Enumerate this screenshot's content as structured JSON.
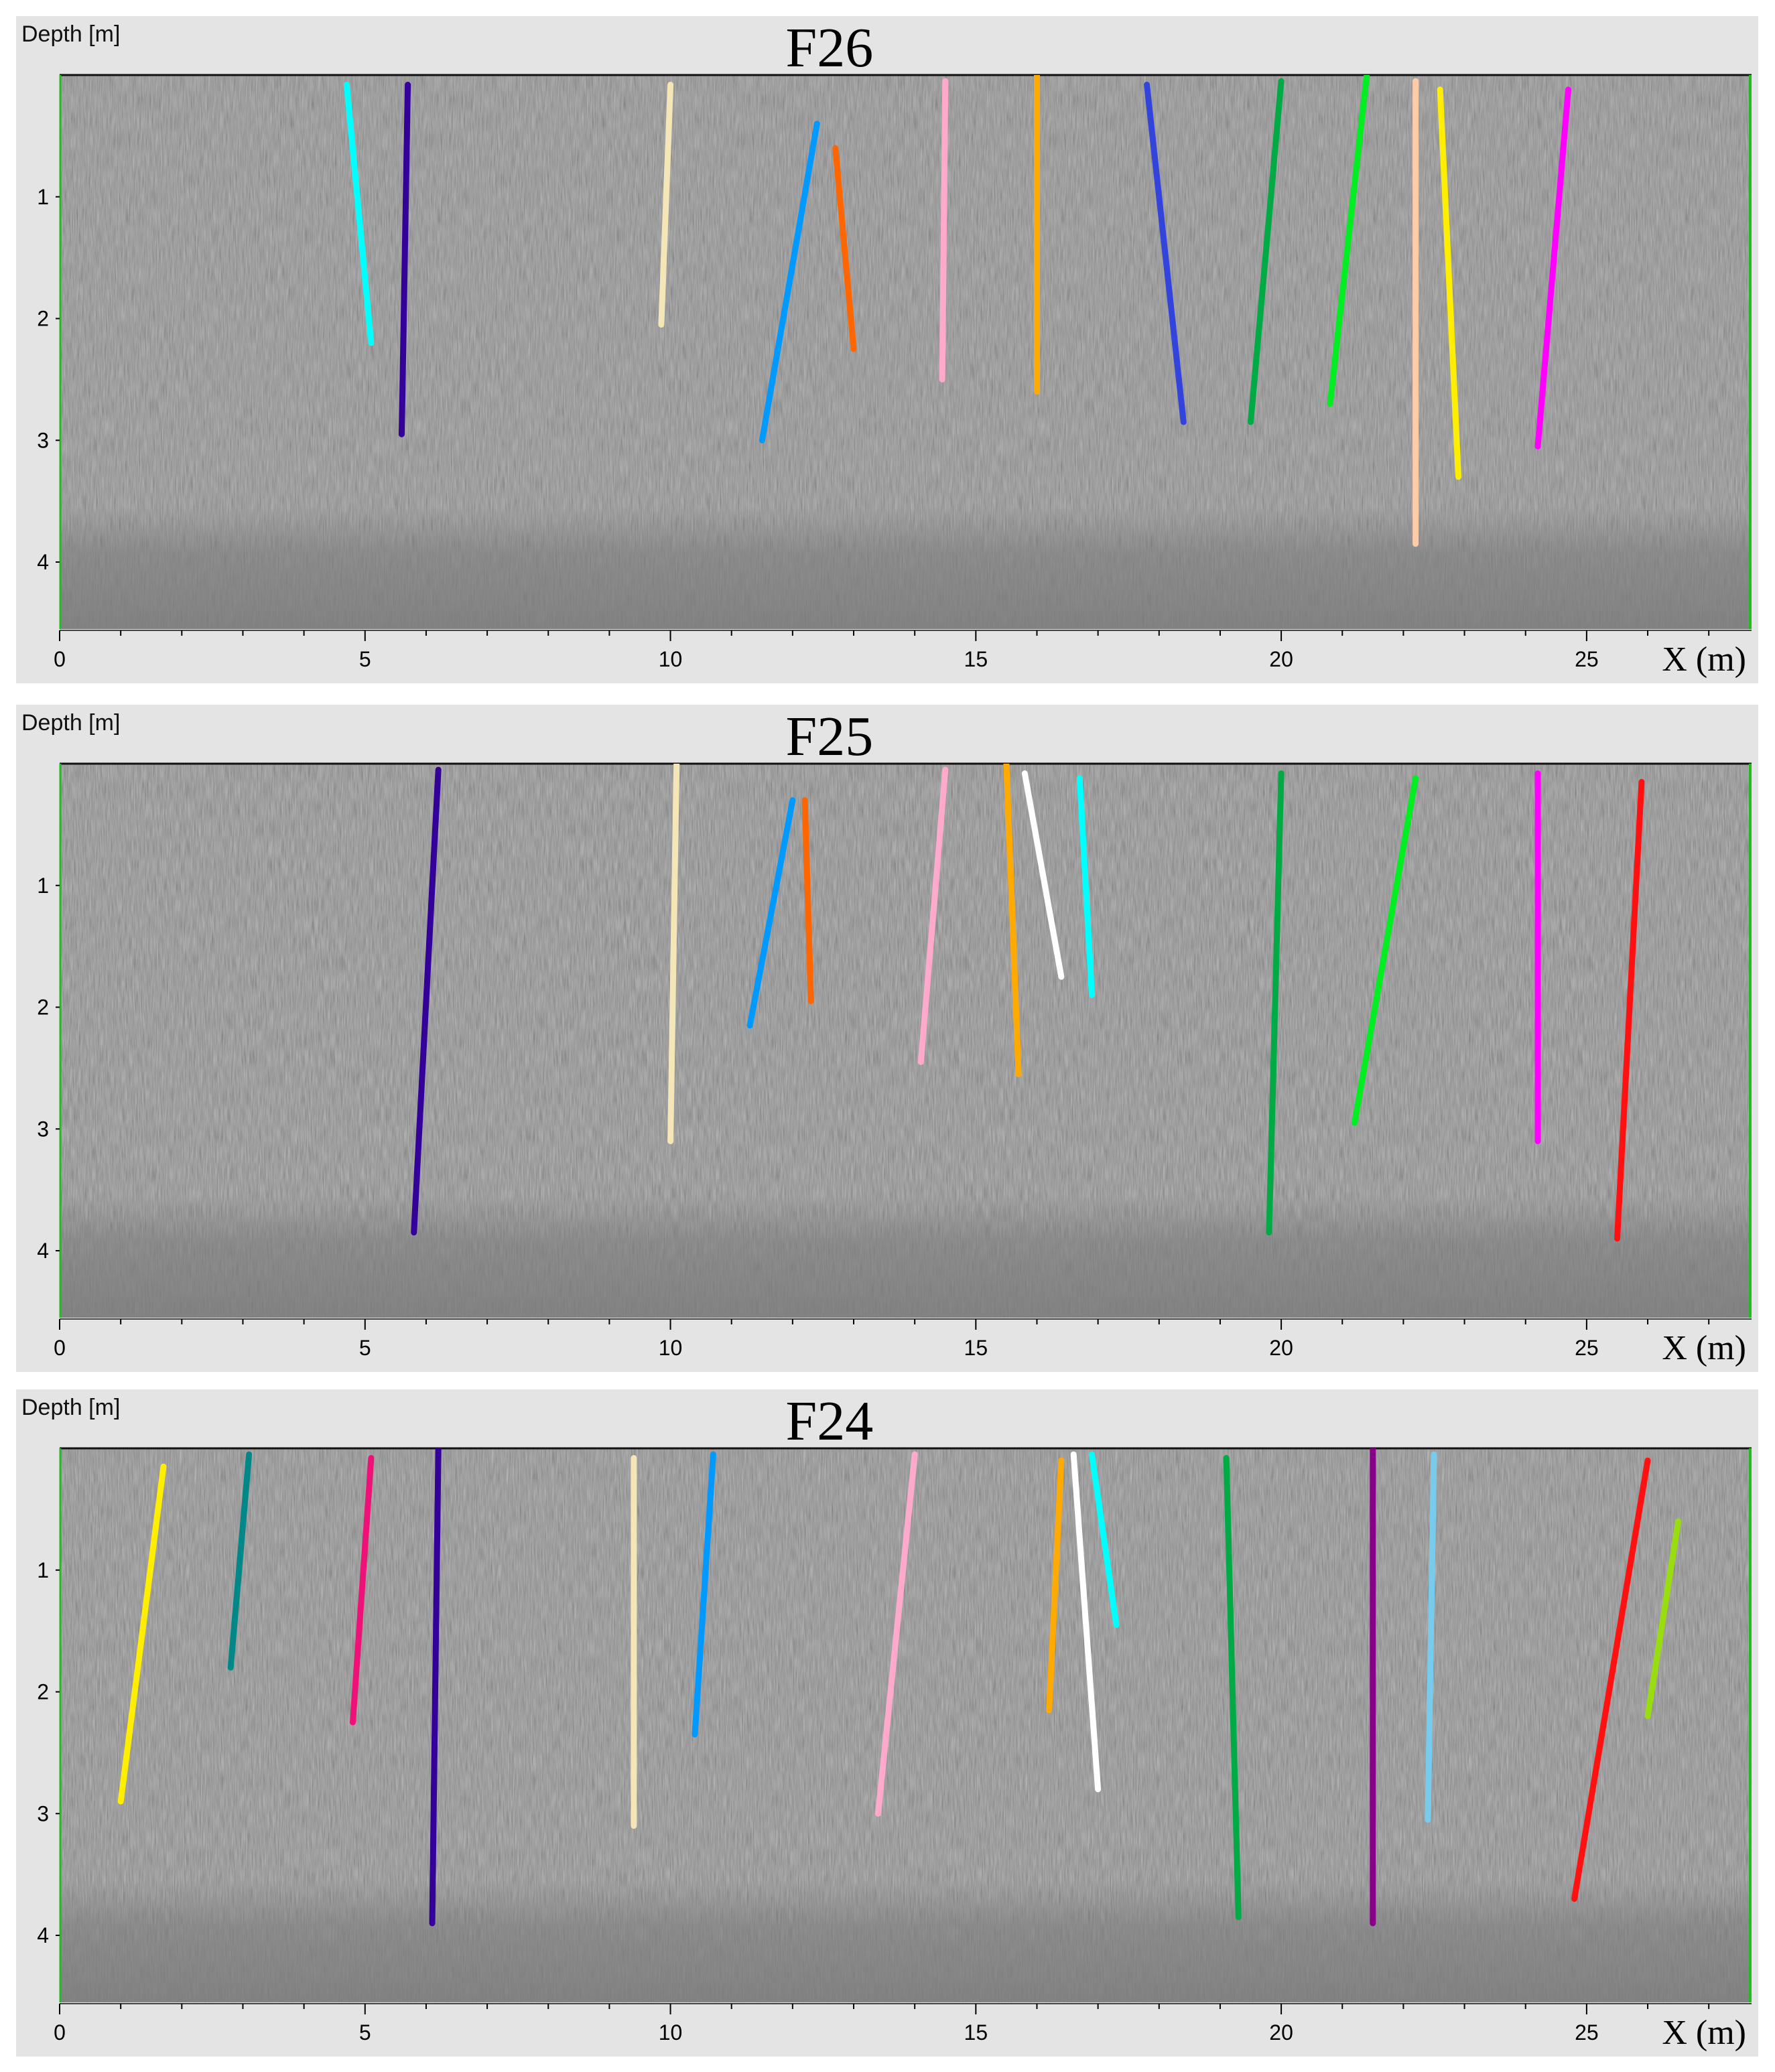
{
  "chart_data": [
    {
      "type": "line",
      "title": "F26",
      "ylabel": "Depth [m]",
      "xlabel": "X (m)",
      "xlim": [
        0,
        27.7
      ],
      "ylim": [
        0,
        4.55
      ],
      "y_inverted": true,
      "x_ticks": [
        0,
        5,
        10,
        15,
        20,
        25
      ],
      "y_ticks": [
        1,
        2,
        3,
        4
      ],
      "grid": false,
      "background": "grayscale radargram",
      "series": [
        {
          "color": "#00ffff",
          "x": [
            4.7,
            5.1
          ],
          "y": [
            0.08,
            2.2
          ]
        },
        {
          "color": "#330099",
          "x": [
            5.7,
            5.6
          ],
          "y": [
            0.08,
            2.95
          ]
        },
        {
          "color": "#f5e6b8",
          "x": [
            10.0,
            9.85
          ],
          "y": [
            0.08,
            2.05
          ]
        },
        {
          "color": "#0099ff",
          "x": [
            12.4,
            11.5
          ],
          "y": [
            0.4,
            3.0
          ]
        },
        {
          "color": "#ff6600",
          "x": [
            12.7,
            13.0
          ],
          "y": [
            0.6,
            2.25
          ]
        },
        {
          "color": "#ffaacc",
          "x": [
            14.5,
            14.45
          ],
          "y": [
            0.05,
            2.5
          ]
        },
        {
          "color": "#ffaa00",
          "x": [
            16.0,
            16.0
          ],
          "y": [
            0.0,
            2.6
          ]
        },
        {
          "color": "#3344dd",
          "x": [
            17.8,
            18.4
          ],
          "y": [
            0.08,
            2.85
          ]
        },
        {
          "color": "#00aa44",
          "x": [
            20.0,
            19.5
          ],
          "y": [
            0.05,
            2.85
          ]
        },
        {
          "color": "#00ee22",
          "x": [
            21.4,
            20.8
          ],
          "y": [
            0.0,
            2.7
          ]
        },
        {
          "color": "#ffccaa",
          "x": [
            22.2,
            22.2
          ],
          "y": [
            0.05,
            3.85
          ]
        },
        {
          "color": "#ffee00",
          "x": [
            22.6,
            22.9
          ],
          "y": [
            0.12,
            3.3
          ]
        },
        {
          "color": "#ff00ff",
          "x": [
            24.7,
            24.2
          ],
          "y": [
            0.12,
            3.05
          ]
        }
      ]
    },
    {
      "type": "line",
      "title": "F25",
      "ylabel": "Depth [m]",
      "xlabel": "X (m)",
      "xlim": [
        0,
        27.7
      ],
      "ylim": [
        0,
        4.55
      ],
      "y_inverted": true,
      "x_ticks": [
        0,
        5,
        10,
        15,
        20,
        25
      ],
      "y_ticks": [
        1,
        2,
        3,
        4
      ],
      "grid": false,
      "background": "grayscale radargram",
      "series": [
        {
          "color": "#330099",
          "x": [
            6.2,
            5.8
          ],
          "y": [
            0.05,
            3.85
          ]
        },
        {
          "color": "#f5e6b8",
          "x": [
            10.1,
            10.0
          ],
          "y": [
            0.0,
            3.1
          ]
        },
        {
          "color": "#0099ff",
          "x": [
            12.0,
            11.3
          ],
          "y": [
            0.3,
            2.15
          ]
        },
        {
          "color": "#ff6600",
          "x": [
            12.2,
            12.3
          ],
          "y": [
            0.3,
            1.95
          ]
        },
        {
          "color": "#ffaacc",
          "x": [
            14.5,
            14.1
          ],
          "y": [
            0.05,
            2.45
          ]
        },
        {
          "color": "#ffaa00",
          "x": [
            15.5,
            15.7
          ],
          "y": [
            0.0,
            2.55
          ]
        },
        {
          "color": "#ffffff",
          "x": [
            15.8,
            16.4
          ],
          "y": [
            0.08,
            1.75
          ]
        },
        {
          "color": "#00ffff",
          "x": [
            16.7,
            16.9
          ],
          "y": [
            0.12,
            1.9
          ]
        },
        {
          "color": "#00aa44",
          "x": [
            20.0,
            19.8
          ],
          "y": [
            0.08,
            3.85
          ]
        },
        {
          "color": "#00ee22",
          "x": [
            22.2,
            21.2
          ],
          "y": [
            0.12,
            2.95
          ]
        },
        {
          "color": "#ff00ff",
          "x": [
            24.2,
            24.2
          ],
          "y": [
            0.08,
            3.1
          ]
        },
        {
          "color": "#ff1111",
          "x": [
            25.9,
            25.5
          ],
          "y": [
            0.15,
            3.9
          ]
        }
      ]
    },
    {
      "type": "line",
      "title": "F24",
      "ylabel": "Depth [m]",
      "xlabel": "X (m)",
      "xlim": [
        0,
        27.7
      ],
      "ylim": [
        0,
        4.55
      ],
      "y_inverted": true,
      "x_ticks": [
        0,
        5,
        10,
        15,
        20,
        25
      ],
      "y_ticks": [
        1,
        2,
        3,
        4
      ],
      "grid": false,
      "background": "grayscale radargram",
      "series": [
        {
          "color": "#ffee00",
          "x": [
            1.7,
            1.0
          ],
          "y": [
            0.15,
            2.9
          ]
        },
        {
          "color": "#008888",
          "x": [
            3.1,
            2.8
          ],
          "y": [
            0.05,
            1.8
          ]
        },
        {
          "color": "#ee1177",
          "x": [
            5.1,
            4.8
          ],
          "y": [
            0.08,
            2.25
          ]
        },
        {
          "color": "#330099",
          "x": [
            6.2,
            6.1
          ],
          "y": [
            0.0,
            3.9
          ]
        },
        {
          "color": "#f5e6b8",
          "x": [
            9.4,
            9.4
          ],
          "y": [
            0.08,
            3.1
          ]
        },
        {
          "color": "#0099ff",
          "x": [
            10.7,
            10.4
          ],
          "y": [
            0.05,
            2.35
          ]
        },
        {
          "color": "#ffaacc",
          "x": [
            14.0,
            13.4
          ],
          "y": [
            0.05,
            3.0
          ]
        },
        {
          "color": "#ffaa00",
          "x": [
            16.4,
            16.2
          ],
          "y": [
            0.1,
            2.15
          ]
        },
        {
          "color": "#ffffff",
          "x": [
            16.6,
            17.0
          ],
          "y": [
            0.05,
            2.8
          ]
        },
        {
          "color": "#00ffff",
          "x": [
            16.9,
            17.3
          ],
          "y": [
            0.05,
            1.45
          ]
        },
        {
          "color": "#00aa44",
          "x": [
            19.1,
            19.3
          ],
          "y": [
            0.08,
            3.85
          ]
        },
        {
          "color": "#880088",
          "x": [
            21.5,
            21.5
          ],
          "y": [
            0.0,
            3.9
          ]
        },
        {
          "color": "#77ccee",
          "x": [
            22.5,
            22.4
          ],
          "y": [
            0.05,
            3.05
          ]
        },
        {
          "color": "#ff1111",
          "x": [
            26.0,
            24.8
          ],
          "y": [
            0.1,
            3.7
          ]
        },
        {
          "color": "#99dd11",
          "x": [
            26.5,
            26.0
          ],
          "y": [
            0.6,
            2.2
          ]
        }
      ]
    }
  ]
}
